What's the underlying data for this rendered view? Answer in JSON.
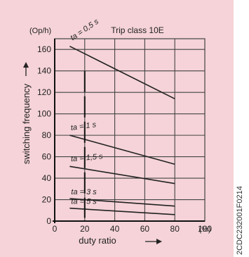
{
  "chart_data": {
    "type": "line",
    "title": "Trip class 10E",
    "xlabel": "duty ratio",
    "ylabel": "switching frequency",
    "x_unit": "(%)",
    "y_unit": "(Op/h)",
    "xlim": [
      0,
      100
    ],
    "ylim": [
      0,
      170
    ],
    "x_ticks": [
      "0",
      "20",
      "40",
      "60",
      "80",
      "100"
    ],
    "y_ticks": [
      "0",
      "20",
      "40",
      "60",
      "80",
      "100",
      "120",
      "140",
      "160"
    ],
    "grid": true,
    "series": [
      {
        "name": "ta = 0,5 s",
        "x": [
          10,
          80
        ],
        "y": [
          163,
          114
        ]
      },
      {
        "name": "ta = 1 s",
        "x": [
          10,
          80
        ],
        "y": [
          80,
          53
        ]
      },
      {
        "name": "ta = 1,5 s",
        "x": [
          10,
          80
        ],
        "y": [
          51,
          35
        ]
      },
      {
        "name": "ta = 3 s",
        "x": [
          10,
          80
        ],
        "y": [
          21,
          14
        ]
      },
      {
        "name": "ta = 5 s",
        "x": [
          10,
          80
        ],
        "y": [
          12,
          6
        ]
      }
    ]
  },
  "side_code": "2CDC232001F0214",
  "colors": {
    "panel": "#f5d3d8",
    "line": "#222222",
    "grid": "#444444"
  }
}
